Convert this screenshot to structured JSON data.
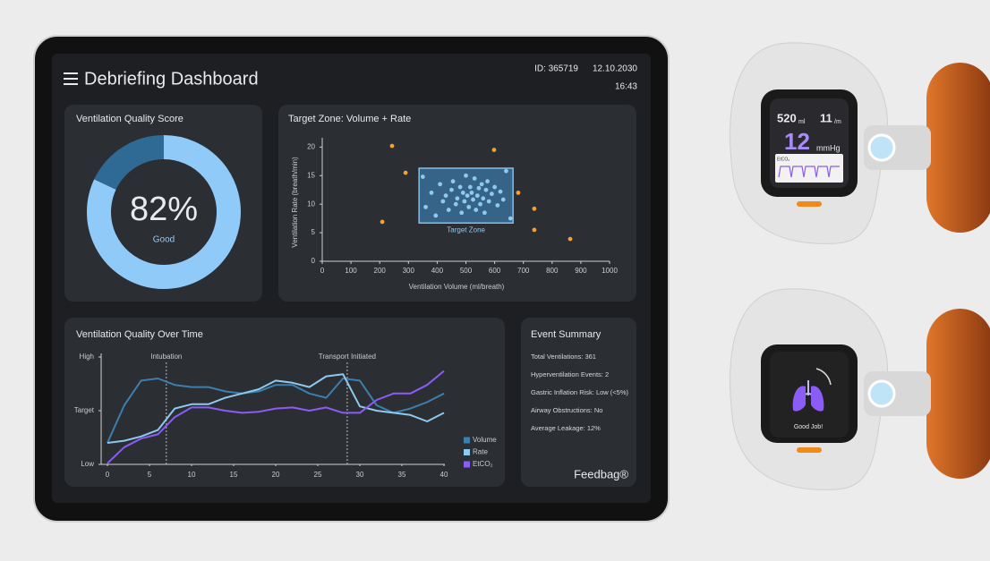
{
  "header": {
    "title": "Debriefing Dashboard",
    "id": "ID: 365719",
    "date": "12.10.2030",
    "time": "16:43"
  },
  "chart_data": [
    {
      "type": "donut",
      "title": "Ventilation Quality Score",
      "values": [
        82,
        18
      ],
      "value_labels": [
        "82%",
        null
      ],
      "rating": "Good",
      "colors": [
        "#90caf9",
        "#2f6a95"
      ]
    },
    {
      "type": "scatter",
      "title": "Target Zone: Volume + Rate",
      "x_label": "Ventilation Volume (ml/breath)",
      "y_label": "Ventilation Rate (breath/min)",
      "xlim": [
        0,
        1000
      ],
      "ylim": [
        0,
        21
      ],
      "xticks": [
        0,
        100,
        200,
        300,
        400,
        500,
        600,
        700,
        800,
        900,
        1000
      ],
      "yticks": [
        0,
        5,
        10,
        15,
        20
      ],
      "target_zone": {
        "label": "Target Zone",
        "x": [
          337,
          664
        ],
        "y": [
          6.7,
          16.3
        ],
        "color": "#3f8fd0"
      },
      "series": [
        {
          "color": "#8ec9f0",
          "x": [
            360,
            380,
            395,
            410,
            420,
            430,
            440,
            450,
            455,
            465,
            470,
            480,
            485,
            490,
            495,
            500,
            505,
            510,
            515,
            520,
            525,
            530,
            535,
            540,
            545,
            550,
            555,
            560,
            565,
            570,
            575,
            580,
            590,
            600,
            610,
            620,
            630,
            640,
            350,
            655
          ],
          "y": [
            9.5,
            12,
            8,
            13.5,
            10.5,
            11.5,
            9,
            12.5,
            14,
            10,
            11,
            13,
            8.5,
            12,
            10.5,
            15,
            11.5,
            9.5,
            13,
            12,
            10.8,
            14.5,
            9,
            11.5,
            12.8,
            10,
            13.5,
            11,
            8.5,
            12.5,
            14,
            10.5,
            11.8,
            13,
            9.8,
            12.2,
            10.8,
            15.8,
            14.8,
            7.5
          ]
        },
        {
          "color": "#f5a030",
          "x": [
            243,
            290,
            209,
            598,
            682,
            738,
            738,
            863
          ],
          "y": [
            20.2,
            15.5,
            6.9,
            19.5,
            12,
            9.2,
            5.5,
            3.9
          ]
        }
      ]
    },
    {
      "type": "line",
      "title": "Ventilation Quality Over Time",
      "x": [
        0,
        2,
        4,
        6,
        8,
        10,
        12,
        14,
        16,
        18,
        20,
        22,
        24,
        26,
        28,
        30,
        32,
        34,
        36,
        38,
        40
      ],
      "xlim": [
        0,
        40
      ],
      "xticks": [
        0,
        5,
        10,
        15,
        20,
        25,
        30,
        35,
        40
      ],
      "ylim": [
        0,
        100
      ],
      "yticks": [
        {
          "value": 0,
          "label": "Low"
        },
        {
          "value": 50,
          "label": "Target"
        },
        {
          "value": 100,
          "label": "High"
        }
      ],
      "annotations": [
        {
          "x": 7,
          "label": "Intubation"
        },
        {
          "x": 28.5,
          "label": "Transport Initiated"
        }
      ],
      "series": [
        {
          "name": "Volume",
          "color": "#3c7fae",
          "values": [
            20,
            55,
            78,
            80,
            74,
            72,
            72,
            68,
            66,
            68,
            74,
            74,
            66,
            62,
            80,
            78,
            55,
            48,
            52,
            58,
            66
          ]
        },
        {
          "name": "Rate",
          "color": "#8ec9f0",
          "values": [
            20,
            22,
            26,
            32,
            52,
            56,
            56,
            62,
            66,
            70,
            78,
            76,
            72,
            82,
            84,
            54,
            50,
            48,
            46,
            40,
            48
          ]
        },
        {
          "name": "EtCO₂",
          "color": "#8b5cf6",
          "values": [
            1,
            16,
            24,
            28,
            44,
            53,
            53,
            50,
            48,
            49,
            52,
            53,
            50,
            53,
            48,
            48,
            60,
            66,
            66,
            74,
            87
          ]
        }
      ]
    }
  ],
  "event_summary": {
    "title": "Event Summary",
    "items": [
      "Total Ventilations: 361",
      "Hyperventilation Events: 2",
      "Gastric Inflation Risk: Low (<5%)",
      "Airway Obstructions: No",
      "Average Leakage: 12%"
    ]
  },
  "brand": "Feedbag®",
  "devices": [
    {
      "volume": "520",
      "volume_unit": "ml",
      "rate": "11",
      "rate_unit": "/m",
      "etco2": "12",
      "etco2_unit": "mmHg",
      "trace_label": "EtCO₂"
    },
    {
      "message": "Good Job!"
    }
  ]
}
